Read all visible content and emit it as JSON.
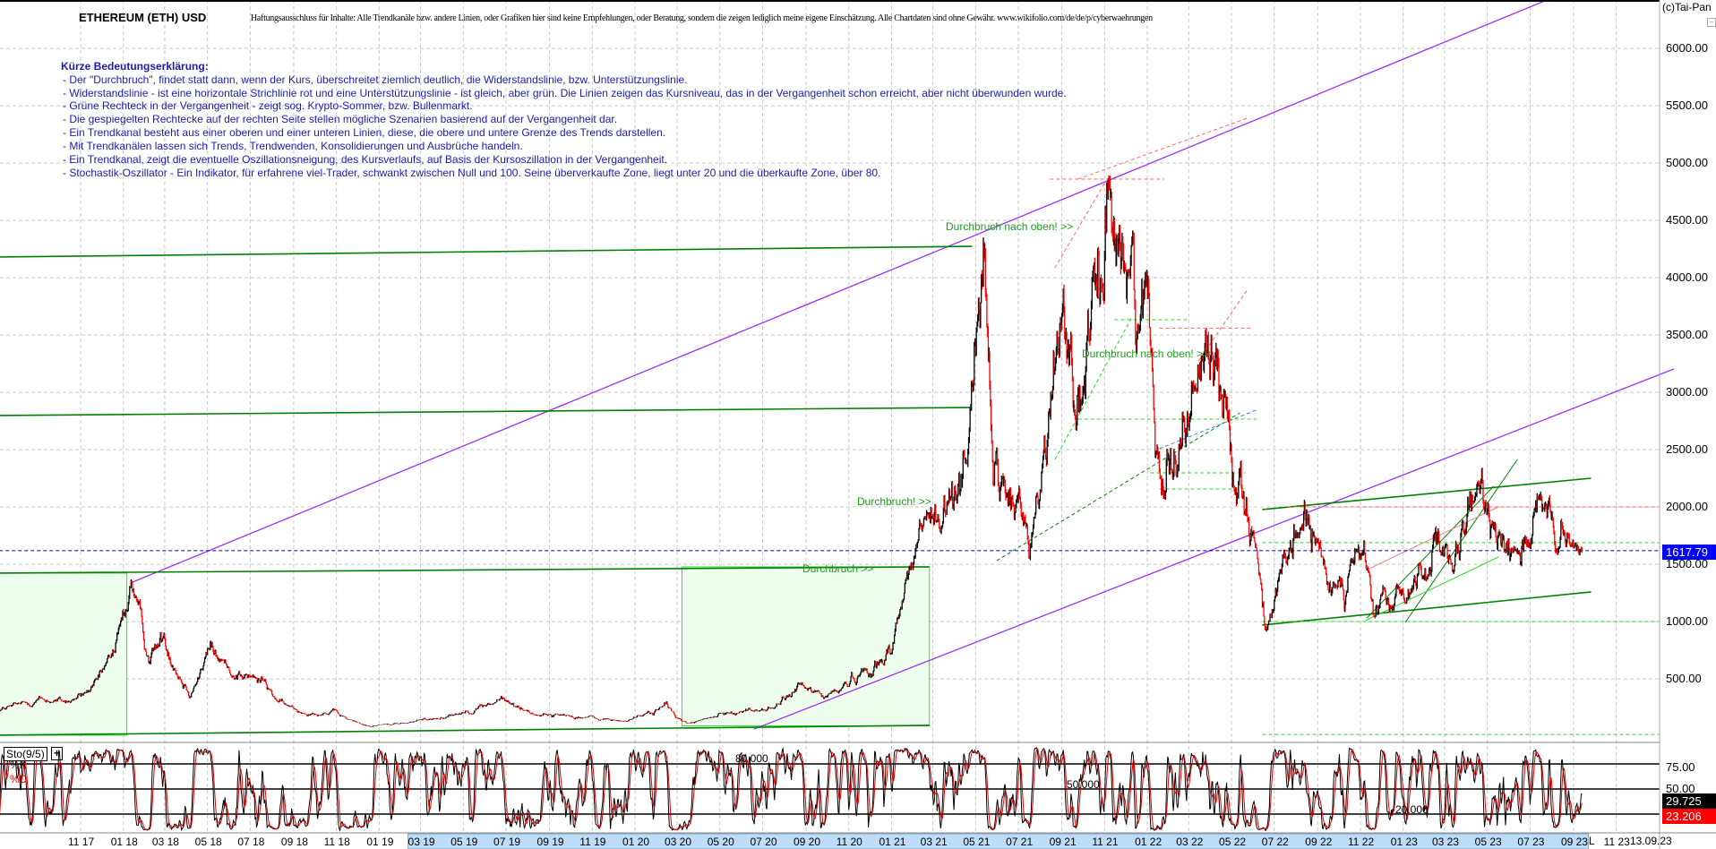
{
  "header": {
    "title": "ETHEREUM (ETH) USD",
    "disclaimer": "Haftungsausschluss für Inhalte: Alle Trendkanäle bzw. andere Linien, oder Grafiken hier sind keine Empfehlungen, oder Beratung, sondern die zeigen lediglich meine eigene Einschätzung. Alle Chartdaten sind ohne Gewähr.  www.wikifolio.com/de/de/p/cyberwaehrungen",
    "copyright": "(c)Tai-Pan",
    "minimize": "−"
  },
  "legend": {
    "heading": "Kürze Bedeutungserklärung:",
    "lines": [
      "- Der \"Durchbruch\", findet statt dann, wenn der Kurs, überschreitet ziemlich deutlich, die Widerstandslinie, bzw. Unterstützungslinie.",
      "- Widerstandslinie - ist eine horizontale Strichlinie rot und eine Unterstützungslinie - ist gleich, aber grün. Die Linien zeigen das Kursniveau, das in der Vergangenheit schon erreicht, aber nicht überwunden wurde.",
      "- Grüne Rechteck in der Vergangenheit - zeigt sog. Krypto-Sommer, bzw. Bullenmarkt.",
      "- Die gespiegelten Rechtecke auf der rechten Seite stellen mögliche Szenarien basierend auf der Vergangenheit dar.",
      "- Ein Trendkanal besteht aus einer oberen und einer unteren Linien, diese, die obere und untere Grenze des Trends darstellen.",
      "- Mit Trendkanälen lassen sich Trends, Trendwenden, Konsolidierungen und Ausbrüche handeln.",
      "- Ein Trendkanal, zeigt die eventuelle Oszillationsneigung, des Kursverlaufs, auf Basis der Kursoszillation in der Vergangenheit.",
      "- Stochastik-Oszillator - Ein Indikator, für erfahrene viel-Trader, schwankt zwischen Null und 100. Seine überverkaufte Zone, liegt unter 20 und die überkaufte Zone, über 80."
    ]
  },
  "annotations": [
    "Durchbruch nach oben! >>",
    "Durchbruch nach oben! >>",
    "Durchbruch! >>",
    "Durchbruch >>"
  ],
  "chart_data": [
    {
      "type": "candlestick",
      "title": "ETHEREUM (ETH) USD",
      "y_axis": {
        "ticks": [
          "6000.00",
          "5500.00",
          "5000.00",
          "4500.00",
          "4000.00",
          "3500.00",
          "3000.00",
          "2500.00",
          "2000.00",
          "1500.00",
          "1000.00",
          "500.00"
        ],
        "range": [
          0,
          6400
        ],
        "side": "right",
        "grid": true
      },
      "last_price": "1617.79",
      "price_points": [
        [
          "2017-07-08",
          230
        ],
        [
          "2017-09-01",
          320
        ],
        [
          "2017-10-15",
          300
        ],
        [
          "2017-11-20",
          420
        ],
        [
          "2017-12-20",
          780
        ],
        [
          "2018-01-13",
          1380
        ],
        [
          "2018-02-06",
          700
        ],
        [
          "2018-03-01",
          870
        ],
        [
          "2018-04-05",
          390
        ],
        [
          "2018-05-05",
          780
        ],
        [
          "2018-06-01",
          580
        ],
        [
          "2018-07-20",
          470
        ],
        [
          "2018-08-15",
          280
        ],
        [
          "2018-09-15",
          210
        ],
        [
          "2018-11-01",
          200
        ],
        [
          "2018-12-15",
          90
        ],
        [
          "2019-02-01",
          110
        ],
        [
          "2019-04-01",
          170
        ],
        [
          "2019-06-25",
          320
        ],
        [
          "2019-08-15",
          190
        ],
        [
          "2019-10-01",
          180
        ],
        [
          "2019-12-15",
          130
        ],
        [
          "2020-02-15",
          270
        ],
        [
          "2020-03-15",
          110
        ],
        [
          "2020-05-15",
          210
        ],
        [
          "2020-07-15",
          240
        ],
        [
          "2020-08-20",
          430
        ],
        [
          "2020-10-01",
          350
        ],
        [
          "2020-11-25",
          600
        ],
        [
          "2020-12-20",
          630
        ],
        [
          "2021-01-20",
          1300
        ],
        [
          "2021-02-20",
          1950
        ],
        [
          "2021-03-10",
          1750
        ],
        [
          "2021-04-15",
          2500
        ],
        [
          "2021-05-12",
          4300
        ],
        [
          "2021-05-25",
          2300
        ],
        [
          "2021-07-20",
          1800
        ],
        [
          "2021-09-03",
          3950
        ],
        [
          "2021-09-25",
          2800
        ],
        [
          "2021-11-10",
          4800
        ],
        [
          "2021-12-05",
          4000
        ],
        [
          "2022-01-01",
          3700
        ],
        [
          "2022-01-24",
          2300
        ],
        [
          "2022-04-02",
          3500
        ],
        [
          "2022-05-10",
          2300
        ],
        [
          "2022-06-01",
          1900
        ],
        [
          "2022-06-18",
          1000
        ],
        [
          "2022-08-13",
          1950
        ],
        [
          "2022-09-20",
          1300
        ],
        [
          "2022-11-05",
          1600
        ],
        [
          "2022-11-20",
          1100
        ],
        [
          "2022-12-31",
          1200
        ],
        [
          "2023-02-15",
          1650
        ],
        [
          "2023-03-10",
          1400
        ],
        [
          "2023-04-15",
          2100
        ],
        [
          "2023-06-15",
          1650
        ],
        [
          "2023-07-15",
          1950
        ],
        [
          "2023-08-17",
          1650
        ],
        [
          "2023-09-13",
          1617.79
        ]
      ],
      "x_axis": {
        "ticks": [
          "11 17",
          "01 18",
          "03 18",
          "05 18",
          "07 18",
          "09 18",
          "11 18",
          "01 19",
          "03 19",
          "05 19",
          "07 19",
          "09 19",
          "11 19",
          "01 20",
          "03 20",
          "05 20",
          "07 20",
          "09 20",
          "11 20",
          "01 21",
          "03 21",
          "05 21",
          "07 21",
          "09 21",
          "11 21",
          "01 22",
          "03 22",
          "05 22",
          "07 22",
          "09 22",
          "11 22",
          "01 23",
          "03 23",
          "05 23",
          "07 23",
          "09 23",
          "11 23"
        ],
        "tick_dates": [
          "2017-11-01",
          "2018-01-01",
          "2018-03-01",
          "2018-05-01",
          "2018-07-01",
          "2018-09-01",
          "2018-11-01",
          "2019-01-01",
          "2019-03-01",
          "2019-05-01",
          "2019-07-01",
          "2019-09-01",
          "2019-11-01",
          "2020-01-01",
          "2020-03-01",
          "2020-05-01",
          "2020-07-01",
          "2020-09-01",
          "2020-11-01",
          "2021-01-01",
          "2021-03-01",
          "2021-05-01",
          "2021-07-01",
          "2021-09-01",
          "2021-11-01",
          "2022-01-01",
          "2022-03-01",
          "2022-05-01",
          "2022-07-01",
          "2022-09-01",
          "2022-11-01",
          "2023-01-01",
          "2023-03-01",
          "2023-05-01",
          "2023-07-01",
          "2023-09-01",
          "2023-11-01"
        ],
        "highlight_range": [
          "2019-03-01",
          "2023-10-10"
        ],
        "current_date": "13.09.23",
        "scale_button": "L"
      },
      "colors": {
        "up": "#000000",
        "down": "#ff0000",
        "channel": "#9b30ff",
        "support": "#008000",
        "support_light": "#22dd22",
        "resistance": "#ff6666",
        "bull_box": "#eefeee",
        "last_price_tag": "#0000ff"
      },
      "trendlines": [
        {
          "style": "channel",
          "from": [
            "2018-01-11",
            1336
          ],
          "to": [
            "2023-07-25",
            6422
          ]
        },
        {
          "style": "channel",
          "from": [
            "2020-06-19",
            62
          ],
          "to": [
            "2024-01-22",
            3203
          ]
        },
        {
          "style": "support",
          "from": [
            "2017-07-08",
            4180
          ],
          "to": [
            "2021-04-26",
            4273
          ]
        },
        {
          "style": "support",
          "from": [
            "2017-07-08",
            2797
          ],
          "to": [
            "2021-04-23",
            2867
          ]
        },
        {
          "style": "support",
          "from": [
            "2017-07-08",
            1422
          ],
          "to": [
            "2021-02-24",
            1477
          ]
        },
        {
          "style": "support",
          "from": [
            "2017-07-08",
            8
          ],
          "to": [
            "2021-02-24",
            94
          ]
        },
        {
          "style": "support",
          "from": [
            "2022-06-14",
            1977
          ],
          "to": [
            "2023-09-26",
            2250
          ]
        },
        {
          "style": "support",
          "from": [
            "2022-06-14",
            969
          ],
          "to": [
            "2023-09-26",
            1258
          ]
        },
        {
          "style": "support_thin",
          "from": [
            "2023-01-04",
            992
          ],
          "to": [
            "2023-06-13",
            2414
          ]
        },
        {
          "style": "support_thin",
          "from": [
            "2022-11-10",
            1030
          ],
          "to": [
            "2023-05-10",
            2180
          ]
        },
        {
          "style": "support_light",
          "from": [
            "2022-11-08",
            1008
          ],
          "to": [
            "2023-05-17",
            1563
          ]
        },
        {
          "style": "resistance_thin",
          "from": [
            "2022-11-08",
            1445
          ],
          "to": [
            "2023-05-17",
            2000
          ]
        }
      ],
      "dashed_lines": [
        {
          "style": "resistance",
          "from": [
            "2022-07-20",
            2000
          ],
          "to": [
            "2024-01-01",
            2000
          ]
        },
        {
          "style": "support_light",
          "from": [
            "2022-06-14",
            1688
          ],
          "to": [
            "2024-01-01",
            1688
          ]
        },
        {
          "style": "support_light",
          "from": [
            "2022-06-14",
            1000
          ],
          "to": [
            "2024-01-01",
            1000
          ]
        },
        {
          "style": "support_light",
          "from": [
            "2022-06-14",
            15
          ],
          "to": [
            "2024-01-01",
            15
          ]
        },
        {
          "style": "last",
          "from": [
            "2017-07-08",
            1617.79
          ],
          "to": [
            "2024-01-01",
            1617.79
          ]
        },
        {
          "style": "support_light",
          "from": [
            "2021-09-24",
            2766
          ],
          "to": [
            "2022-06-06",
            2766
          ]
        },
        {
          "style": "resistance",
          "from": [
            "2022-01-18",
            3560
          ],
          "to": [
            "2022-06-01",
            3560
          ]
        },
        {
          "style": "support_light",
          "from": [
            "2021-11-15",
            3633
          ],
          "to": [
            "2022-02-27",
            3633
          ]
        },
        {
          "style": "support_light",
          "from": [
            "2022-01-05",
            2297
          ],
          "to": [
            "2022-05-21",
            2297
          ]
        },
        {
          "style": "support_light",
          "from": [
            "2022-01-18",
            2156
          ],
          "to": [
            "2022-05-23",
            2156
          ]
        },
        {
          "style": "resistance",
          "from": [
            "2021-08-15",
            4859
          ],
          "to": [
            "2022-01-25",
            4859
          ]
        },
        {
          "style": "support",
          "from": [
            "2021-05-31",
            1531
          ],
          "to": [
            "2022-05-13",
            2820
          ]
        },
        {
          "style": "blue",
          "from": [
            "2022-01-18",
            2508
          ],
          "to": [
            "2022-06-05",
            2844
          ]
        },
        {
          "style": "support_light",
          "from": [
            "2021-08-22",
            2414
          ],
          "to": [
            "2021-12-10",
            3656
          ]
        },
        {
          "style": "resistance",
          "from": [
            "2021-08-22",
            4086
          ],
          "to": [
            "2021-11-03",
            4844
          ]
        },
        {
          "style": "resistance",
          "from": [
            "2021-09-24",
            4859
          ],
          "to": [
            "2022-05-23",
            5390
          ]
        },
        {
          "style": "resistance",
          "from": [
            "2022-03-15",
            3273
          ],
          "to": [
            "2022-05-23",
            3890
          ]
        }
      ],
      "bull_boxes": [
        {
          "from": [
            "2017-07-08",
            8
          ],
          "to": [
            "2018-01-06",
            1422
          ]
        },
        {
          "from": [
            "2020-03-08",
            90
          ],
          "to": [
            "2021-02-24",
            1477
          ]
        }
      ]
    },
    {
      "type": "line",
      "title": "Sto(9/5)",
      "series": [
        {
          "name": "%K",
          "color": "#000000",
          "last": "29.725"
        },
        {
          "name": "%D",
          "color": "#e00000",
          "last": "23.206"
        }
      ],
      "y_axis": {
        "ticks": [
          "75.00",
          "50.00"
        ],
        "range": [
          0,
          100
        ]
      },
      "levels": [
        80,
        50,
        20
      ],
      "level_labels": [
        "80.000",
        "50.000",
        "20.000"
      ]
    }
  ]
}
